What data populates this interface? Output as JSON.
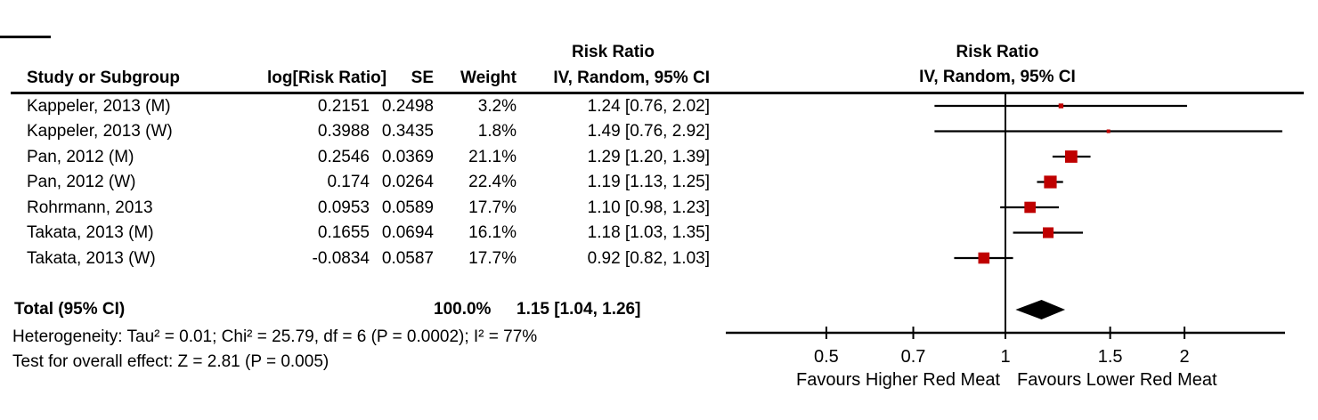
{
  "figure": {
    "table_headers": {
      "study": "Study or Subgroup",
      "log_rr": "log[Risk Ratio]",
      "se": "SE",
      "weight": "Weight",
      "ci_text_title": "Risk Ratio",
      "ci_text_subtitle": "IV, Random, 95% CI",
      "plot_title": "Risk Ratio",
      "plot_subtitle": "IV, Random, 95% CI"
    },
    "rows": [
      {
        "study": "Kappeler, 2013 (M)",
        "log_rr": "0.2151",
        "se": "0.2498",
        "weight": "3.2%",
        "ci": "1.24 [0.76, 2.02]"
      },
      {
        "study": "Kappeler, 2013 (W)",
        "log_rr": "0.3988",
        "se": "0.3435",
        "weight": "1.8%",
        "ci": "1.49 [0.76, 2.92]"
      },
      {
        "study": "Pan, 2012 (M)",
        "log_rr": "0.2546",
        "se": "0.0369",
        "weight": "21.1%",
        "ci": "1.29 [1.20, 1.39]"
      },
      {
        "study": "Pan, 2012 (W)",
        "log_rr": "0.174",
        "se": "0.0264",
        "weight": "22.4%",
        "ci": "1.19 [1.13, 1.25]"
      },
      {
        "study": "Rohrmann, 2013",
        "log_rr": "0.0953",
        "se": "0.0589",
        "weight": "17.7%",
        "ci": "1.10 [0.98, 1.23]"
      },
      {
        "study": "Takata, 2013 (M)",
        "log_rr": "0.1655",
        "se": "0.0694",
        "weight": "16.1%",
        "ci": "1.18 [1.03, 1.35]"
      },
      {
        "study": "Takata, 2013 (W)",
        "log_rr": "-0.0834",
        "se": "0.0587",
        "weight": "17.7%",
        "ci": "0.92 [0.82, 1.03]"
      }
    ],
    "total": {
      "label": "Total (95% CI)",
      "weight": "100.0%",
      "ci": "1.15 [1.04, 1.26]"
    },
    "heterogeneity": "Heterogeneity: Tau² = 0.01; Chi² = 25.79, df = 6 (P = 0.0002); I² = 77%",
    "overall_effect": "Test for overall effect: Z = 2.81 (P = 0.005)"
  },
  "chart_data": {
    "type": "scatter",
    "subtype": "forest_plot",
    "title": "Risk Ratio",
    "subtitle": "IV, Random, 95% CI",
    "x_scale": "log",
    "x_ticks": [
      0.5,
      0.7,
      1,
      1.5,
      2
    ],
    "x_range_approx": [
      0.34,
      2.95
    ],
    "null_line": 1,
    "studies": [
      {
        "name": "Kappeler, 2013 (M)",
        "rr": 1.24,
        "ci_low": 0.76,
        "ci_high": 2.02,
        "weight_pct": 3.2
      },
      {
        "name": "Kappeler, 2013 (W)",
        "rr": 1.49,
        "ci_low": 0.76,
        "ci_high": 2.92,
        "weight_pct": 1.8
      },
      {
        "name": "Pan, 2012 (M)",
        "rr": 1.29,
        "ci_low": 1.2,
        "ci_high": 1.39,
        "weight_pct": 21.1
      },
      {
        "name": "Pan, 2012 (W)",
        "rr": 1.19,
        "ci_low": 1.13,
        "ci_high": 1.25,
        "weight_pct": 22.4
      },
      {
        "name": "Rohrmann, 2013",
        "rr": 1.1,
        "ci_low": 0.98,
        "ci_high": 1.23,
        "weight_pct": 17.7
      },
      {
        "name": "Takata, 2013 (M)",
        "rr": 1.18,
        "ci_low": 1.03,
        "ci_high": 1.35,
        "weight_pct": 16.1
      },
      {
        "name": "Takata, 2013 (W)",
        "rr": 0.92,
        "ci_low": 0.82,
        "ci_high": 1.03,
        "weight_pct": 17.7
      }
    ],
    "total": {
      "rr": 1.15,
      "ci_low": 1.04,
      "ci_high": 1.26
    },
    "footer_left": "Favours Higher Red Meat",
    "footer_right": "Favours Lower Red Meat",
    "marker_color": "#bf0000",
    "diamond_color": "#000000",
    "line_color": "#000000",
    "legend": "none",
    "grid": false
  }
}
